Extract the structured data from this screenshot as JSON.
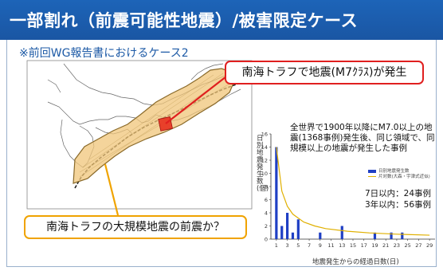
{
  "slide": {
    "title": "一部割れ（前震可能性地震）/被害限定ケース",
    "subtitle": "※前回WG報告書におけるケース2"
  },
  "callouts": {
    "event": "南海トラフで地震(M7ｸﾗｽ)が発生",
    "question": "南海トラフの大規模地震の前震か？"
  },
  "chart_text": {
    "description": "全世界で1900年以降にM7.0以上の地震(1368事例)発生後、同じ領域で、同規模以上の地震が発生した事例",
    "within7": "7日以内：24事例",
    "within3y": "3年以内：56事例"
  },
  "chart_data": {
    "type": "bar",
    "ylabel": "日別地震発生数(個)",
    "xlabel": "地震発生からの経過日数(日)",
    "ylim": [
      0,
      16
    ],
    "yticks": [
      "0",
      "2",
      "4",
      "6",
      "8",
      "10",
      "12",
      "14",
      "16"
    ],
    "xticks": [
      "1",
      "3",
      "5",
      "7",
      "9",
      "11",
      "13",
      "15",
      "17",
      "19",
      "21",
      "23",
      "25",
      "27",
      "29"
    ],
    "legend": [
      "日別地震発生数",
      "片対数(大森・宇津式近似)"
    ],
    "x": [
      1,
      2,
      3,
      4,
      5,
      9,
      13,
      19,
      22,
      24
    ],
    "values": [
      14,
      2,
      4,
      1,
      3,
      1,
      2,
      1,
      1,
      1
    ],
    "fit": [
      [
        1,
        14
      ],
      [
        2,
        7.3
      ],
      [
        3,
        5
      ],
      [
        4,
        3.8
      ],
      [
        6,
        2.6
      ],
      [
        8,
        2
      ],
      [
        10,
        1.6
      ],
      [
        14,
        1.2
      ],
      [
        18,
        0.95
      ],
      [
        23,
        0.75
      ],
      [
        29,
        0.6
      ]
    ]
  }
}
